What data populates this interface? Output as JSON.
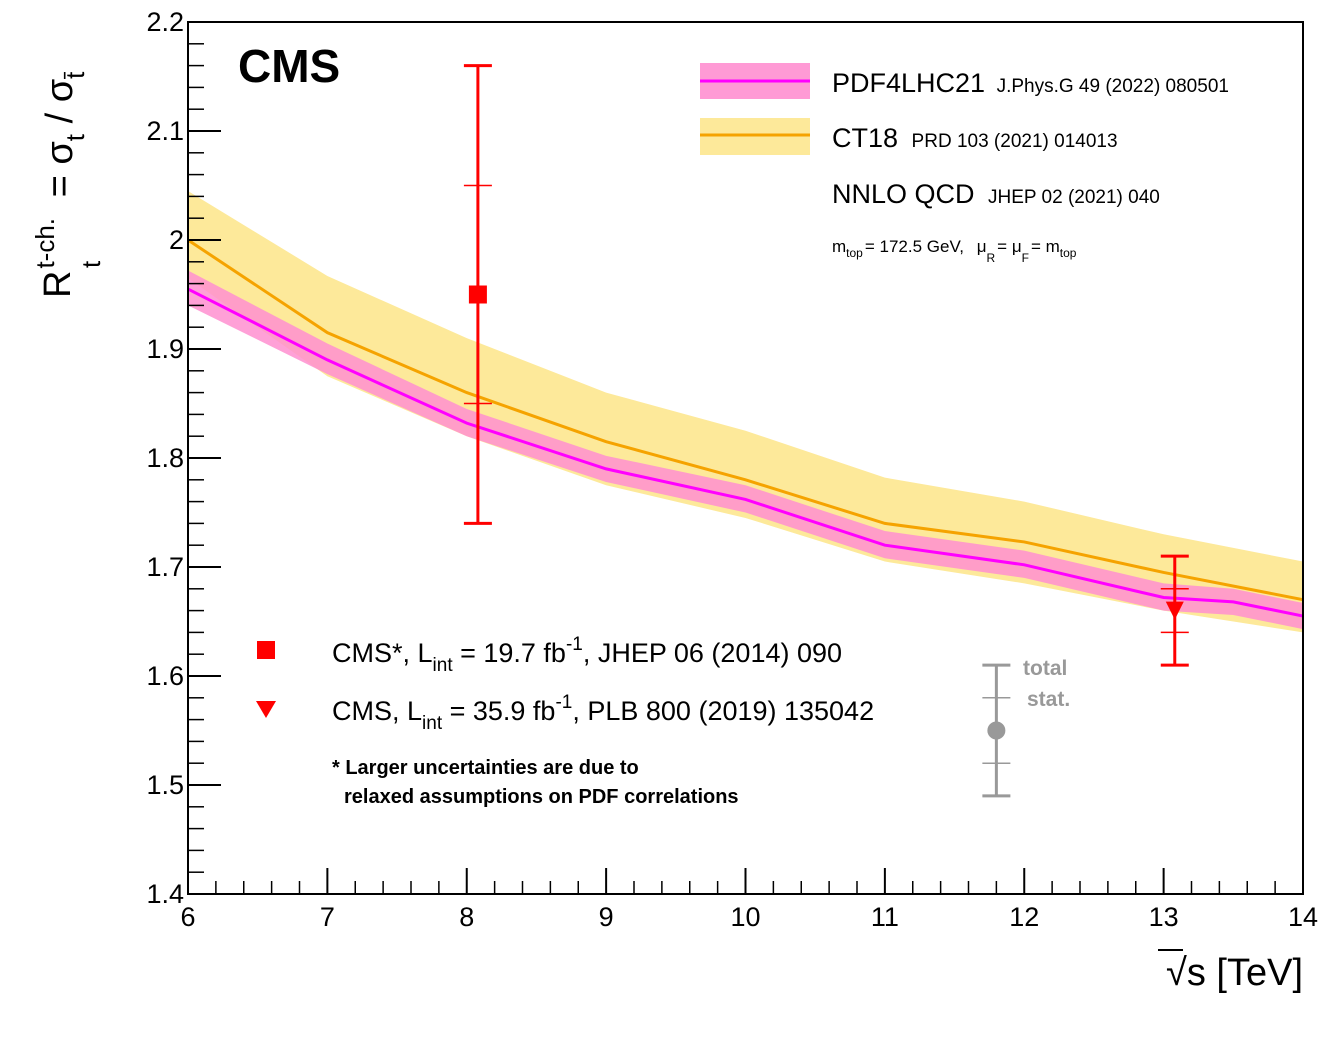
{
  "chart_data": {
    "type": "line",
    "experiment": "CMS",
    "xlabel": "√s [TeV]",
    "xlabel_parts": {
      "root": "√",
      "var": "s",
      "unit": " [TeV]"
    },
    "ylabel_parts": {
      "R": "R",
      "sup": "t-ch.",
      "sub": "t",
      "eq": " = σ",
      "sub2": "t",
      "slash": " / σ",
      "sub3": "t̄"
    },
    "xlim": [
      6,
      14
    ],
    "ylim": [
      1.4,
      2.2
    ],
    "x_ticks": [
      6,
      7,
      8,
      9,
      10,
      11,
      12,
      13,
      14
    ],
    "x_tick_labels": [
      "6",
      "7",
      "8",
      "9",
      "10",
      "11",
      "12",
      "13",
      "14"
    ],
    "y_ticks": [
      1.4,
      1.5,
      1.6,
      1.7,
      1.8,
      1.9,
      2.0,
      2.1,
      2.2
    ],
    "y_tick_labels": [
      "1.4",
      "1.5",
      "1.6",
      "1.7",
      "1.8",
      "1.9",
      "2",
      "2.1",
      "2.2"
    ],
    "bands": [
      {
        "name": "CT18",
        "reference": "PRD 103 (2021) 014013",
        "line_color": "#f5a300",
        "fill_color": "#fde99a",
        "x": [
          6,
          7,
          8,
          9,
          10,
          11,
          12,
          13,
          14
        ],
        "central": [
          2.0,
          1.915,
          1.86,
          1.815,
          1.78,
          1.74,
          1.723,
          1.695,
          1.67
        ],
        "upper": [
          2.045,
          1.967,
          1.91,
          1.86,
          1.825,
          1.782,
          1.76,
          1.73,
          1.705
        ],
        "lower": [
          1.965,
          1.875,
          1.82,
          1.775,
          1.745,
          1.705,
          1.685,
          1.66,
          1.64
        ]
      },
      {
        "name": "PDF4LHC21",
        "reference": "J.Phys.G 49 (2022) 080501",
        "line_color": "#ff00ff",
        "fill_color": "#ff8fd0",
        "x": [
          6,
          7,
          8,
          9,
          10,
          11,
          12,
          13,
          13.5,
          14
        ],
        "central": [
          1.955,
          1.89,
          1.832,
          1.79,
          1.762,
          1.72,
          1.702,
          1.672,
          1.668,
          1.655
        ],
        "upper": [
          1.972,
          1.905,
          1.845,
          1.802,
          1.775,
          1.733,
          1.715,
          1.685,
          1.68,
          1.667
        ],
        "lower": [
          1.94,
          1.877,
          1.82,
          1.778,
          1.75,
          1.708,
          1.69,
          1.66,
          1.656,
          1.643
        ]
      }
    ],
    "measurements": [
      {
        "label": "CMS*, L",
        "label_sub": "int",
        "label_mid": " = 19.7 fb",
        "label_sup": "-1",
        "label_end": ", JHEP 06 (2014) 090",
        "marker": "square",
        "color": "#ff0000",
        "x": 8.08,
        "y": 1.95,
        "total_low": 1.74,
        "total_high": 2.16,
        "stat_low": 1.85,
        "stat_high": 2.05
      },
      {
        "label": "CMS, L",
        "label_sub": "int",
        "label_mid": " = 35.9 fb",
        "label_sup": "-1",
        "label_end": ", PLB 800 (2019) 135042",
        "marker": "triangle-down",
        "color": "#ff0000",
        "x": 13.08,
        "y": 1.66,
        "total_low": 1.61,
        "total_high": 1.71,
        "stat_low": 1.64,
        "stat_high": 1.68
      }
    ],
    "uncertainty_key": {
      "total_label": "total",
      "stat_label": "stat.",
      "color": "#999999",
      "x": 11.8,
      "y": 1.55,
      "total_low": 1.49,
      "total_high": 1.61,
      "stat_low": 1.52,
      "stat_high": 1.58
    },
    "legend": {
      "placement": "top-right",
      "theory_label": "NNLO QCD",
      "theory_reference": "JHEP 02 (2021) 040",
      "params": {
        "m": "m",
        "m_sub": "top",
        "m_val": "= 172.5 GeV,",
        "mu": "μ",
        "mu_r_sub": "R",
        "eq1": "= μ",
        "mu_f_sub": "F",
        "eq2": "= m",
        "m2_sub": "top"
      }
    },
    "footnote_lines": [
      "* Larger uncertainties are due to",
      "relaxed assumptions on PDF correlations"
    ]
  }
}
